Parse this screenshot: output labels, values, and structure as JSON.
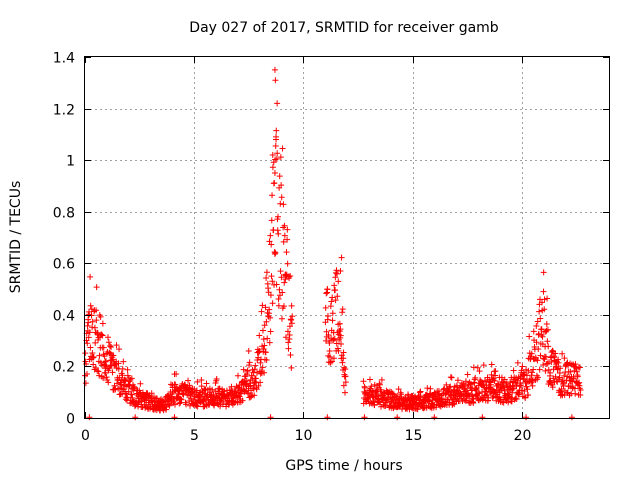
{
  "chart_data": {
    "type": "scatter",
    "title": "Day 027 of 2017, SRMTID for receiver gamb",
    "xlabel": "GPS time / hours",
    "ylabel": "SRMTID / TECUs",
    "xlim": [
      0,
      24
    ],
    "ylim": [
      0,
      1.4
    ],
    "xticks": [
      0,
      5,
      10,
      15,
      20
    ],
    "xtick_labels": [
      "0",
      "5",
      "10",
      "15",
      "20"
    ],
    "yticks": [
      0,
      0.2,
      0.4,
      0.6,
      0.8,
      1,
      1.2,
      1.4
    ],
    "ytick_labels": [
      "0",
      "0.2",
      "0.4",
      "0.6",
      "0.8",
      "1",
      "1.2",
      "1.4"
    ],
    "grid": true,
    "marker": "+",
    "color": "#ff0000",
    "series": [
      {
        "name": "SRMTID",
        "envelope": [
          [
            0.0,
            0.22
          ],
          [
            0.2,
            0.3
          ],
          [
            0.5,
            0.3
          ],
          [
            0.9,
            0.25
          ],
          [
            1.3,
            0.18
          ],
          [
            1.8,
            0.13
          ],
          [
            2.3,
            0.08
          ],
          [
            3.0,
            0.06
          ],
          [
            3.6,
            0.05
          ],
          [
            4.2,
            0.1
          ],
          [
            5.0,
            0.08
          ],
          [
            5.8,
            0.08
          ],
          [
            6.5,
            0.08
          ],
          [
            7.2,
            0.1
          ],
          [
            7.8,
            0.16
          ],
          [
            8.2,
            0.3
          ],
          [
            8.5,
            0.55
          ],
          [
            8.7,
            0.8
          ],
          [
            8.9,
            0.7
          ],
          [
            9.2,
            0.55
          ],
          [
            9.45,
            0.35
          ],
          [
            11.1,
            0.35
          ],
          [
            11.4,
            0.4
          ],
          [
            11.7,
            0.45
          ],
          [
            11.9,
            0.15
          ],
          [
            12.8,
            0.1
          ],
          [
            13.5,
            0.08
          ],
          [
            14.5,
            0.06
          ],
          [
            15.5,
            0.06
          ],
          [
            16.5,
            0.08
          ],
          [
            17.5,
            0.1
          ],
          [
            18.5,
            0.12
          ],
          [
            19.5,
            0.1
          ],
          [
            20.2,
            0.14
          ],
          [
            20.6,
            0.22
          ],
          [
            20.9,
            0.35
          ],
          [
            21.3,
            0.2
          ],
          [
            21.8,
            0.15
          ],
          [
            22.3,
            0.15
          ],
          [
            22.7,
            0.15
          ]
        ],
        "gaps": [
          [
            9.5,
            11.0
          ],
          [
            11.95,
            12.75
          ]
        ],
        "peaks": [
          {
            "x": 8.7,
            "y": 1.35
          },
          {
            "x": 8.72,
            "y": 1.31
          },
          {
            "x": 8.8,
            "y": 1.22
          },
          {
            "x": 8.75,
            "y": 1.08
          },
          {
            "x": 8.6,
            "y": 1.02
          },
          {
            "x": 8.7,
            "y": 0.95
          },
          {
            "x": 8.65,
            "y": 0.91
          },
          {
            "x": 11.7,
            "y": 0.57
          },
          {
            "x": 11.6,
            "y": 0.53
          },
          {
            "x": 11.1,
            "y": 0.5
          },
          {
            "x": 21.0,
            "y": 0.49
          },
          {
            "x": 21.05,
            "y": 0.46
          },
          {
            "x": 0.15,
            "y": 0.37
          },
          {
            "x": 4.1,
            "y": 0.17
          },
          {
            "x": 7.5,
            "y": 0.26
          }
        ],
        "baseline_marks": [
          0.2,
          2.3,
          4.1,
          8.5,
          11.1,
          12.8,
          14.3,
          16.0,
          18.2,
          20.2,
          22.3
        ]
      }
    ]
  }
}
